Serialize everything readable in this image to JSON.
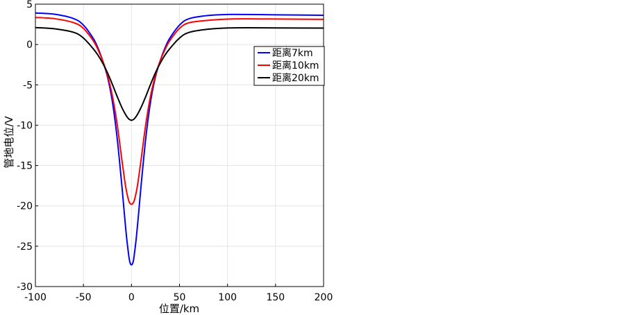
{
  "chart_data": {
    "type": "line",
    "title": "",
    "xlabel": "位置/km",
    "ylabel": "管地电位/V",
    "xlim": [
      -100,
      200
    ],
    "ylim": [
      -30,
      5
    ],
    "xticks": [
      "-100",
      "-50",
      "0",
      "50",
      "100",
      "150",
      "200"
    ],
    "yticks": [
      "5",
      "0",
      "-5",
      "-10",
      "-15",
      "-20",
      "-25",
      "-30"
    ],
    "grid": true,
    "legend_position": "top-right",
    "x": [
      -100,
      -80,
      -60,
      -50,
      -40,
      -35,
      -30,
      -25,
      -20,
      -15,
      -10,
      -7,
      -5,
      -3,
      -2,
      -1,
      0,
      1,
      2,
      3,
      5,
      7,
      10,
      15,
      20,
      25,
      30,
      35,
      40,
      50,
      60,
      80,
      100,
      120,
      150,
      200
    ],
    "series": [
      {
        "name": "距离7km",
        "color": "#0000ff",
        "values": [
          3.9,
          3.75,
          3.2,
          2.4,
          0.8,
          -0.4,
          -2.0,
          -4.0,
          -7.0,
          -11.5,
          -17.5,
          -21.5,
          -24.0,
          -26.0,
          -26.8,
          -27.2,
          -27.3,
          -27.2,
          -26.8,
          -26.0,
          -24.0,
          -21.5,
          -17.5,
          -11.5,
          -7.0,
          -4.0,
          -2.0,
          -0.4,
          0.8,
          2.4,
          3.2,
          3.6,
          3.72,
          3.72,
          3.68,
          3.62
        ]
      },
      {
        "name": "距离10km",
        "color": "#ff0000",
        "values": [
          3.35,
          3.2,
          2.7,
          2.0,
          0.5,
          -0.6,
          -2.0,
          -3.8,
          -6.3,
          -9.8,
          -14.3,
          -16.9,
          -18.3,
          -19.3,
          -19.6,
          -19.75,
          -19.8,
          -19.75,
          -19.6,
          -19.3,
          -18.3,
          -16.9,
          -14.3,
          -9.8,
          -6.3,
          -3.8,
          -2.0,
          -0.6,
          0.5,
          2.0,
          2.7,
          3.0,
          3.15,
          3.18,
          3.16,
          3.12
        ]
      },
      {
        "name": "距离20km",
        "color": "#000000",
        "values": [
          2.1,
          1.95,
          1.5,
          0.8,
          -0.5,
          -1.3,
          -2.3,
          -3.5,
          -4.9,
          -6.4,
          -7.8,
          -8.5,
          -8.9,
          -9.2,
          -9.3,
          -9.35,
          -9.4,
          -9.35,
          -9.3,
          -9.2,
          -8.9,
          -8.5,
          -7.8,
          -6.4,
          -4.9,
          -3.5,
          -2.3,
          -1.3,
          -0.5,
          0.8,
          1.5,
          1.9,
          2.05,
          2.08,
          2.06,
          2.03
        ]
      }
    ]
  }
}
